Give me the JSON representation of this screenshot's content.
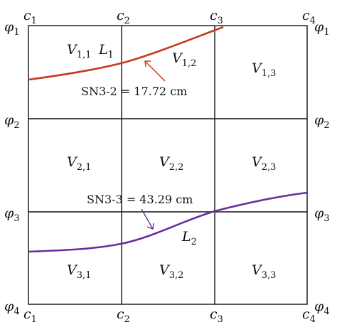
{
  "columns": {
    "base": "c",
    "subs": [
      "1",
      "2",
      "3",
      "4"
    ]
  },
  "rows": {
    "base": "φ",
    "subs": [
      "1",
      "2",
      "3",
      "4"
    ]
  },
  "cells": [
    [
      {
        "base": "V",
        "sub": "1,1"
      },
      {
        "base": "V",
        "sub": "1,2"
      },
      {
        "base": "V",
        "sub": "1,3"
      }
    ],
    [
      {
        "base": "V",
        "sub": "2,1"
      },
      {
        "base": "V",
        "sub": "2,2"
      },
      {
        "base": "V",
        "sub": "2,3"
      }
    ],
    [
      {
        "base": "V",
        "sub": "3,1"
      },
      {
        "base": "V",
        "sub": "3,2"
      },
      {
        "base": "V",
        "sub": "3,3"
      }
    ]
  ],
  "curves": [
    {
      "label_base": "L",
      "label_sub": "1",
      "color": "#c23b22"
    },
    {
      "label_base": "L",
      "label_sub": "2",
      "color": "#6a2c9e"
    }
  ],
  "annotations": [
    {
      "text": "SN3-2 = 17.72 cm",
      "color": "#c23b22"
    },
    {
      "text": "SN3-3 = 43.29 cm",
      "color": "#6a2c9e"
    }
  ]
}
